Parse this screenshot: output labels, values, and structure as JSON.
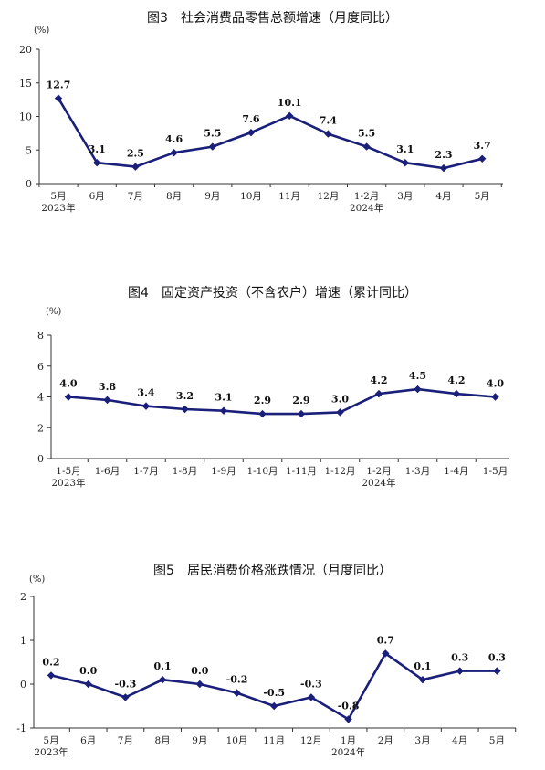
{
  "chart_data": [
    {
      "type": "line",
      "title": "图3　社会消费品零售总额增速（月度同比）",
      "unit": "(%)",
      "categories": [
        "5月",
        "6月",
        "7月",
        "8月",
        "9月",
        "10月",
        "11月",
        "12月",
        "1-2月",
        "3月",
        "4月",
        "5月"
      ],
      "year_labels": [
        "2023年",
        "",
        "",
        "",
        "",
        "",
        "",
        "",
        "2024年",
        "",
        "",
        ""
      ],
      "values": [
        12.7,
        3.1,
        2.5,
        4.6,
        5.5,
        7.6,
        10.1,
        7.4,
        5.5,
        3.1,
        2.3,
        3.7
      ],
      "value_labels": [
        "12.7",
        "3.1",
        "2.5",
        "4.6",
        "5.5",
        "7.6",
        "10.1",
        "7.4",
        "5.5",
        "3.1",
        "2.3",
        "3.7"
      ],
      "ylim": [
        0,
        20
      ],
      "yticks": [
        0,
        5,
        10,
        15,
        20
      ],
      "line_color": "#1a1f7a",
      "grid": false
    },
    {
      "type": "line",
      "title": "图4　固定资产投资（不含农户）增速（累计同比）",
      "unit": "(%)",
      "categories": [
        "1-5月",
        "1-6月",
        "1-7月",
        "1-8月",
        "1-9月",
        "1-10月",
        "1-11月",
        "1-12月",
        "1-2月",
        "1-3月",
        "1-4月",
        "1-5月"
      ],
      "year_labels": [
        "2023年",
        "",
        "",
        "",
        "",
        "",
        "",
        "",
        "2024年",
        "",
        "",
        ""
      ],
      "values": [
        4.0,
        3.8,
        3.4,
        3.2,
        3.1,
        2.9,
        2.9,
        3.0,
        4.2,
        4.5,
        4.2,
        4.0
      ],
      "value_labels": [
        "4.0",
        "3.8",
        "3.4",
        "3.2",
        "3.1",
        "2.9",
        "2.9",
        "3.0",
        "4.2",
        "4.5",
        "4.2",
        "4.0"
      ],
      "ylim": [
        0,
        8
      ],
      "yticks": [
        0,
        2,
        4,
        6,
        8
      ],
      "line_color": "#1a1f7a",
      "grid": false
    },
    {
      "type": "line",
      "title": "图5　居民消费价格涨跌情况（月度同比）",
      "unit": "(%)",
      "categories": [
        "5月",
        "6月",
        "7月",
        "8月",
        "9月",
        "10月",
        "11月",
        "12月",
        "1月",
        "2月",
        "3月",
        "4月",
        "5月"
      ],
      "year_labels": [
        "2023年",
        "",
        "",
        "",
        "",
        "",
        "",
        "",
        "2024年",
        "",
        "",
        "",
        ""
      ],
      "values": [
        0.2,
        0.0,
        -0.3,
        0.1,
        0.0,
        -0.2,
        -0.5,
        -0.3,
        -0.8,
        0.7,
        0.1,
        0.3,
        0.3
      ],
      "value_labels": [
        "0.2",
        "0.0",
        "-0.3",
        "0.1",
        "0.0",
        "-0.2",
        "-0.5",
        "-0.3",
        "-0.8",
        "0.7",
        "0.1",
        "0.3",
        "0.3"
      ],
      "ylim": [
        -1,
        2
      ],
      "yticks": [
        -1,
        0,
        1,
        2
      ],
      "line_color": "#1a1f7a",
      "grid": false
    }
  ]
}
